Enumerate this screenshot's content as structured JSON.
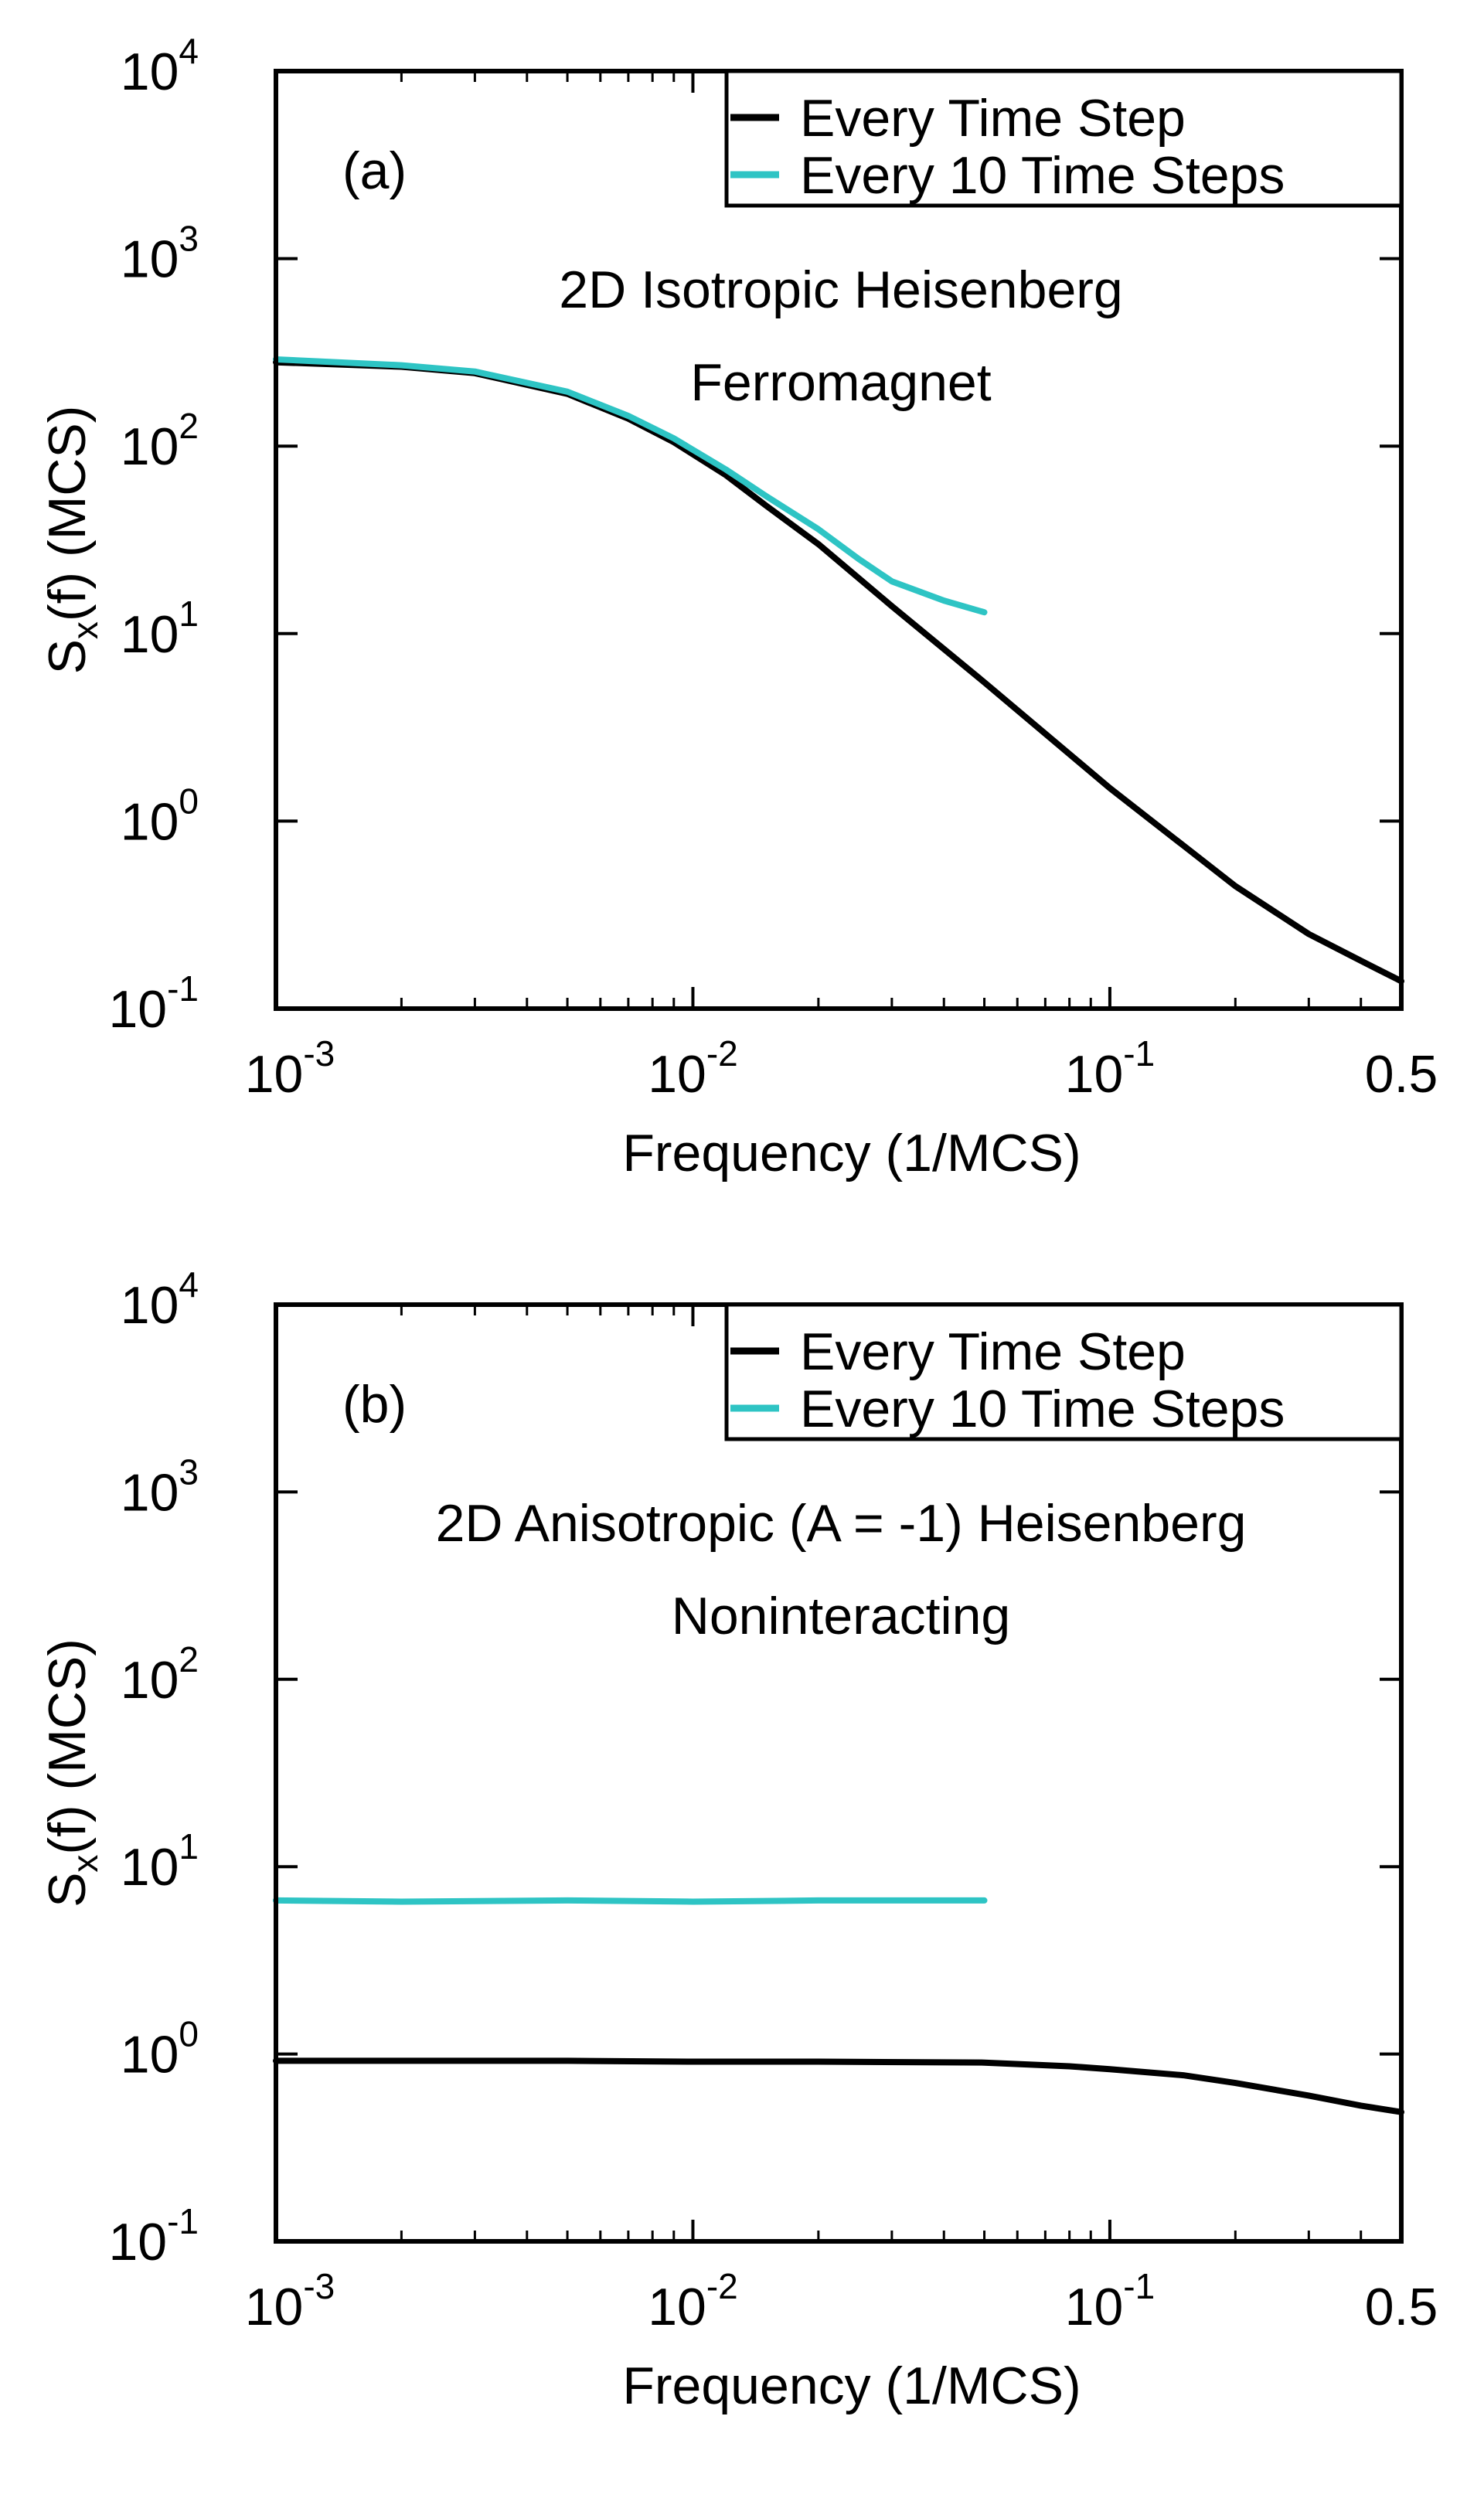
{
  "figure": "two-panel log-log power spectrum",
  "colors": {
    "every_step": "#000000",
    "every_10_steps": "#2ec4c4",
    "axes": "#000000"
  },
  "chart_data": [
    {
      "type": "line",
      "panel_label": "(a)",
      "annotation_lines": [
        "2D Isotropic Heisenberg",
        "Ferromagnet"
      ],
      "xlabel": "Frequency (1/MCS)",
      "ylabel": "S",
      "ylabel_sub": "x",
      "ylabel_tail": "(f) (MCS)",
      "xscale": "log",
      "yscale": "log",
      "xlim": [
        0.001,
        0.5
      ],
      "ylim": [
        0.1,
        10000
      ],
      "x_ticks": [
        {
          "base": "10",
          "exp": "-3",
          "value": 0.001
        },
        {
          "base": "10",
          "exp": "-2",
          "value": 0.01
        },
        {
          "base": "10",
          "exp": "-1",
          "value": 0.1
        },
        {
          "base": "0.5",
          "exp": "",
          "value": 0.5
        }
      ],
      "y_ticks": [
        {
          "base": "10",
          "exp": "-1",
          "value": 0.1
        },
        {
          "base": "10",
          "exp": "0",
          "value": 1
        },
        {
          "base": "10",
          "exp": "1",
          "value": 10
        },
        {
          "base": "10",
          "exp": "2",
          "value": 100
        },
        {
          "base": "10",
          "exp": "3",
          "value": 1000
        },
        {
          "base": "10",
          "exp": "4",
          "value": 10000
        }
      ],
      "legend_position": "top-right",
      "series": [
        {
          "name": "Every Time Step",
          "color": "#000000",
          "x": [
            0.001,
            0.002,
            0.003,
            0.005,
            0.007,
            0.009,
            0.012,
            0.015,
            0.02,
            0.03,
            0.05,
            0.1,
            0.2,
            0.3,
            0.4,
            0.5
          ],
          "y": [
            280,
            265,
            245,
            190,
            140,
            105,
            70,
            48,
            30,
            14,
            5.5,
            1.5,
            0.45,
            0.25,
            0.18,
            0.14
          ]
        },
        {
          "name": "Every 10 Time Steps",
          "color": "#2ec4c4",
          "x": [
            0.001,
            0.002,
            0.003,
            0.005,
            0.007,
            0.009,
            0.012,
            0.015,
            0.02,
            0.025,
            0.03,
            0.04,
            0.05
          ],
          "y": [
            290,
            270,
            250,
            195,
            145,
            110,
            75,
            54,
            36,
            25,
            19,
            15,
            13
          ]
        }
      ]
    },
    {
      "type": "line",
      "panel_label": "(b)",
      "annotation_lines": [
        "2D Anisotropic (A = -1) Heisenberg",
        "Noninteracting"
      ],
      "xlabel": "Frequency (1/MCS)",
      "ylabel": "S",
      "ylabel_sub": "x",
      "ylabel_tail": "(f) (MCS)",
      "xscale": "log",
      "yscale": "log",
      "xlim": [
        0.001,
        0.5
      ],
      "ylim": [
        0.1,
        10000
      ],
      "x_ticks": [
        {
          "base": "10",
          "exp": "-3",
          "value": 0.001
        },
        {
          "base": "10",
          "exp": "-2",
          "value": 0.01
        },
        {
          "base": "10",
          "exp": "-1",
          "value": 0.1
        },
        {
          "base": "0.5",
          "exp": "",
          "value": 0.5
        }
      ],
      "y_ticks": [
        {
          "base": "10",
          "exp": "-1",
          "value": 0.1
        },
        {
          "base": "10",
          "exp": "0",
          "value": 1
        },
        {
          "base": "10",
          "exp": "1",
          "value": 10
        },
        {
          "base": "10",
          "exp": "2",
          "value": 100
        },
        {
          "base": "10",
          "exp": "3",
          "value": 1000
        },
        {
          "base": "10",
          "exp": "4",
          "value": 10000
        }
      ],
      "legend_position": "top-right",
      "series": [
        {
          "name": "Every Time Step",
          "color": "#000000",
          "x": [
            0.001,
            0.002,
            0.005,
            0.01,
            0.02,
            0.05,
            0.08,
            0.1,
            0.15,
            0.2,
            0.3,
            0.4,
            0.5
          ],
          "y": [
            0.92,
            0.92,
            0.92,
            0.91,
            0.91,
            0.9,
            0.86,
            0.83,
            0.77,
            0.7,
            0.6,
            0.53,
            0.49
          ]
        },
        {
          "name": "Every 10 Time Steps",
          "color": "#2ec4c4",
          "x": [
            0.001,
            0.002,
            0.005,
            0.01,
            0.02,
            0.03,
            0.04,
            0.05
          ],
          "y": [
            6.6,
            6.5,
            6.6,
            6.5,
            6.6,
            6.6,
            6.6,
            6.6
          ]
        }
      ]
    }
  ]
}
